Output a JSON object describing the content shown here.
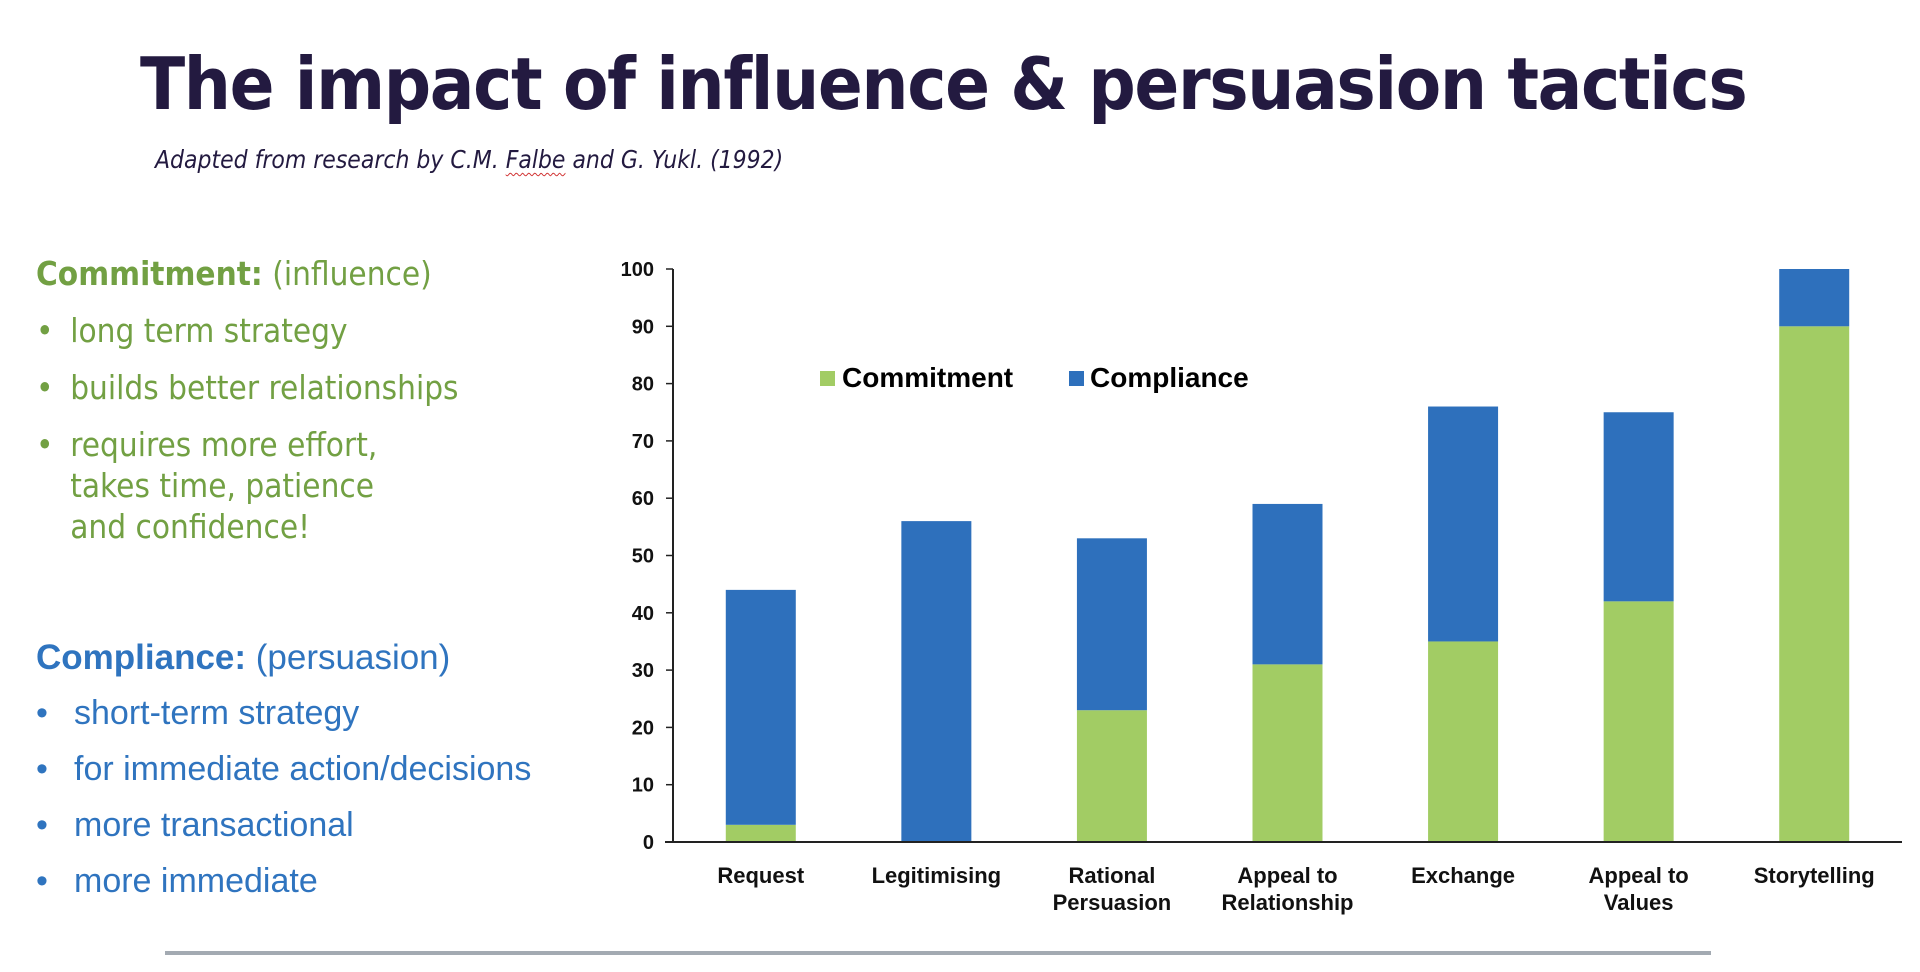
{
  "slide": {
    "title": "The impact of influence & persuasion tactics",
    "subtitle_pre": "Adapted from research by C.M. ",
    "subtitle_spell": "Falbe",
    "subtitle_post": " and G. Yukl. (1992)"
  },
  "commitment_panel": {
    "heading_bold": "Commitment:",
    "heading_rest": " (influence)",
    "bullets": [
      "long term strategy",
      "builds better relationships",
      [
        "requires more effort,",
        "takes time, patience",
        "and confidence!"
      ]
    ]
  },
  "compliance_panel": {
    "heading_bold": "Compliance:",
    "heading_rest": " (persuasion)",
    "bullets": [
      "short-term strategy",
      "for immediate action/decisions",
      "more transactional",
      "more immediate"
    ]
  },
  "colors": {
    "commitment": "#a2cc64",
    "compliance": "#2e70bc",
    "title": "#231a40",
    "axis": "#222222"
  },
  "chart_data": {
    "type": "bar",
    "stacked": true,
    "title": "",
    "xlabel": "",
    "ylabel": "",
    "categories": [
      [
        "Request"
      ],
      [
        "Legitimising"
      ],
      [
        "Rational",
        "Persuasion"
      ],
      [
        "Appeal to",
        "Relationship"
      ],
      [
        "Exchange"
      ],
      [
        "Appeal to",
        "Values"
      ],
      [
        "Storytelling"
      ]
    ],
    "series": [
      {
        "name": "Commitment",
        "color": "#a2cc64",
        "values": [
          3,
          0,
          23,
          31,
          35,
          42,
          90
        ]
      },
      {
        "name": "Compliance",
        "color": "#2e70bc",
        "values": [
          41,
          56,
          30,
          28,
          41,
          33,
          10
        ]
      }
    ],
    "totals": [
      44,
      56,
      53,
      59,
      76,
      75,
      100
    ],
    "ylim": [
      0,
      100
    ],
    "yticks": [
      0,
      10,
      20,
      30,
      40,
      50,
      60,
      70,
      80,
      90,
      100
    ],
    "grid": false,
    "legend": {
      "position": "top-left-inside",
      "entries": [
        "Commitment",
        "Compliance"
      ]
    }
  }
}
